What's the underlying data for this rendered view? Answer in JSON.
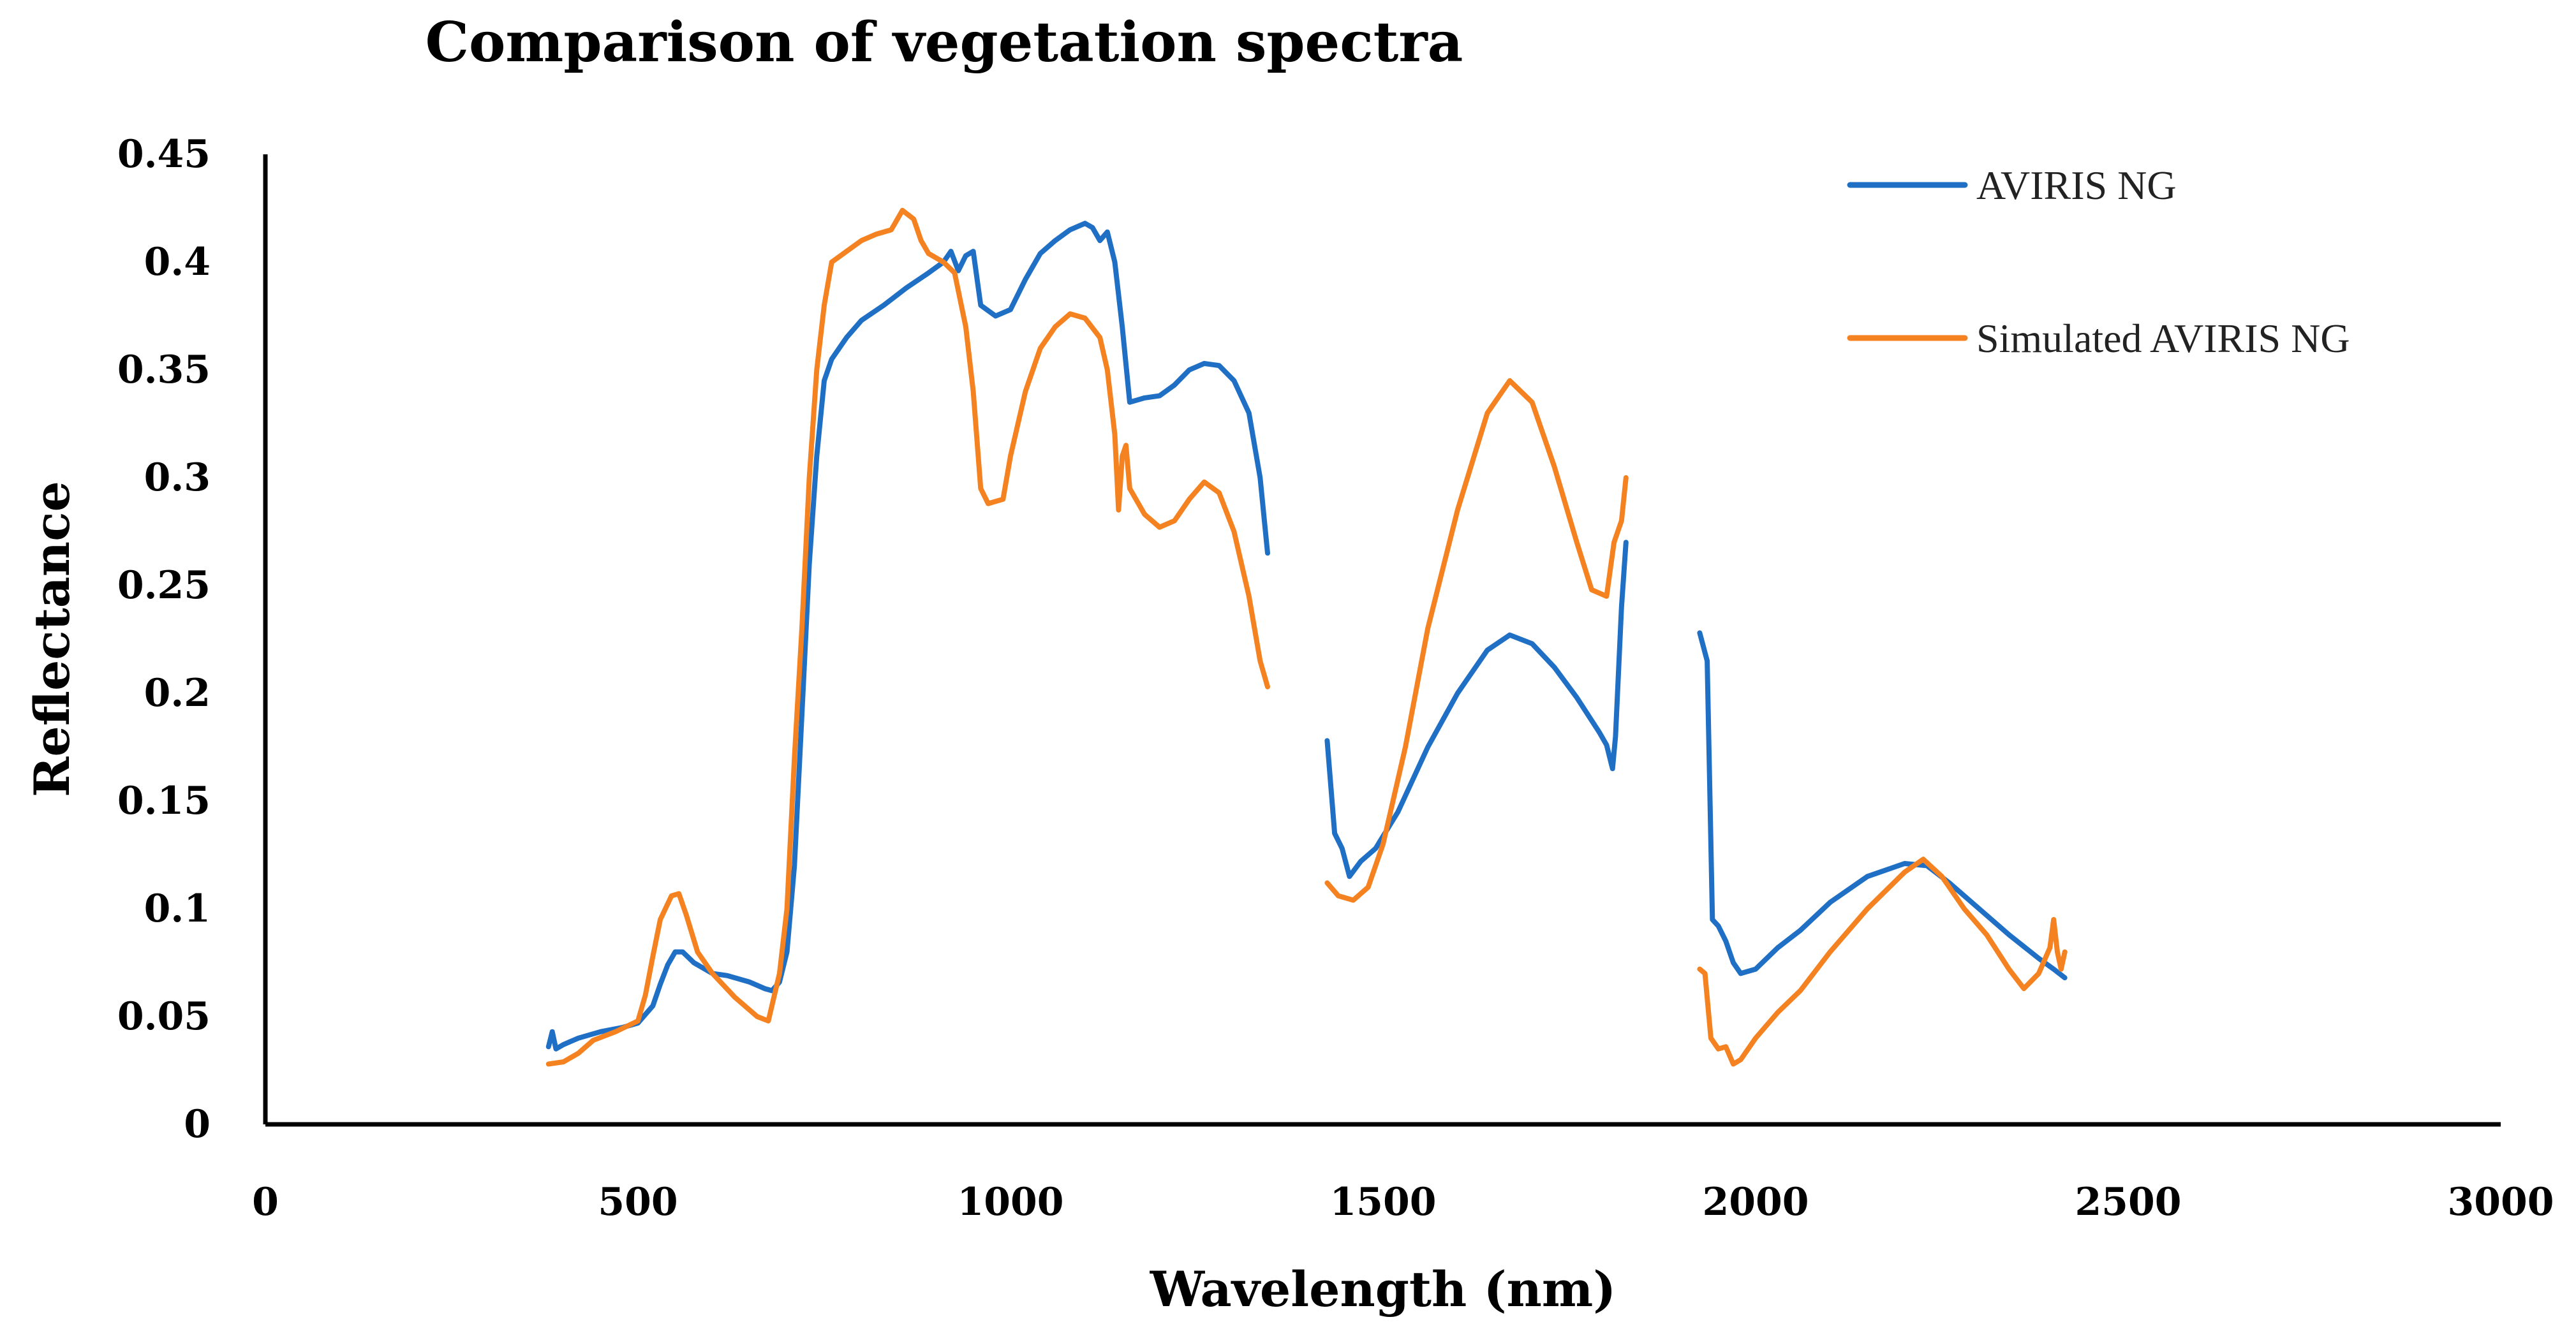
{
  "chart_data": {
    "type": "line",
    "title": "Comparison of vegetation spectra",
    "xlabel": "Wavelength (nm)",
    "ylabel": "Reflectance",
    "xlim": [
      0,
      3000
    ],
    "ylim": [
      0,
      0.45
    ],
    "xticks": [
      0,
      500,
      1000,
      1500,
      2000,
      2500,
      3000
    ],
    "yticks": [
      0,
      0.05,
      0.1,
      0.15,
      0.2,
      0.25,
      0.3,
      0.35,
      0.4,
      0.45
    ],
    "ytick_labels": [
      "0",
      "0.05",
      "0.1",
      "0.15",
      "0.2",
      "0.25",
      "0.3",
      "0.35",
      "0.4",
      "0.45"
    ],
    "xtick_labels": [
      "0",
      "500",
      "1000",
      "1500",
      "2000",
      "2500",
      "3000"
    ],
    "grid": false,
    "legend_position": "top-right",
    "series": [
      {
        "name": "AVIRIS NG",
        "color": "#1f6fc5",
        "segments": [
          [
            [
              380,
              0.036
            ],
            [
              385,
              0.043
            ],
            [
              390,
              0.035
            ],
            [
              400,
              0.037
            ],
            [
              420,
              0.04
            ],
            [
              450,
              0.043
            ],
            [
              480,
              0.045
            ],
            [
              500,
              0.047
            ],
            [
              520,
              0.055
            ],
            [
              530,
              0.065
            ],
            [
              540,
              0.074
            ],
            [
              550,
              0.08
            ],
            [
              560,
              0.08
            ],
            [
              575,
              0.075
            ],
            [
              600,
              0.07
            ],
            [
              620,
              0.069
            ],
            [
              650,
              0.066
            ],
            [
              670,
              0.063
            ],
            [
              680,
              0.062
            ],
            [
              690,
              0.066
            ],
            [
              700,
              0.08
            ],
            [
              710,
              0.12
            ],
            [
              720,
              0.19
            ],
            [
              730,
              0.26
            ],
            [
              740,
              0.31
            ],
            [
              750,
              0.345
            ],
            [
              760,
              0.355
            ],
            [
              780,
              0.365
            ],
            [
              800,
              0.373
            ],
            [
              830,
              0.38
            ],
            [
              860,
              0.388
            ],
            [
              890,
              0.395
            ],
            [
              910,
              0.4
            ],
            [
              920,
              0.405
            ],
            [
              930,
              0.396
            ],
            [
              940,
              0.403
            ],
            [
              950,
              0.405
            ],
            [
              960,
              0.38
            ],
            [
              980,
              0.375
            ],
            [
              1000,
              0.378
            ],
            [
              1020,
              0.392
            ],
            [
              1040,
              0.404
            ],
            [
              1060,
              0.41
            ],
            [
              1080,
              0.415
            ],
            [
              1100,
              0.418
            ],
            [
              1110,
              0.416
            ],
            [
              1120,
              0.41
            ],
            [
              1130,
              0.414
            ],
            [
              1140,
              0.4
            ],
            [
              1150,
              0.37
            ],
            [
              1160,
              0.335
            ],
            [
              1180,
              0.337
            ],
            [
              1200,
              0.338
            ],
            [
              1220,
              0.343
            ],
            [
              1240,
              0.35
            ],
            [
              1260,
              0.353
            ],
            [
              1280,
              0.352
            ],
            [
              1300,
              0.345
            ],
            [
              1320,
              0.33
            ],
            [
              1335,
              0.3
            ],
            [
              1345,
              0.265
            ]
          ],
          [
            [
              1425,
              0.178
            ],
            [
              1435,
              0.135
            ],
            [
              1445,
              0.128
            ],
            [
              1455,
              0.115
            ],
            [
              1470,
              0.122
            ],
            [
              1490,
              0.128
            ],
            [
              1520,
              0.145
            ],
            [
              1560,
              0.175
            ],
            [
              1600,
              0.2
            ],
            [
              1640,
              0.22
            ],
            [
              1670,
              0.227
            ],
            [
              1700,
              0.223
            ],
            [
              1730,
              0.212
            ],
            [
              1760,
              0.198
            ],
            [
              1790,
              0.182
            ],
            [
              1800,
              0.176
            ],
            [
              1808,
              0.165
            ],
            [
              1812,
              0.18
            ],
            [
              1820,
              0.24
            ],
            [
              1826,
              0.27
            ]
          ],
          [
            [
              1925,
              0.228
            ],
            [
              1935,
              0.215
            ],
            [
              1942,
              0.095
            ],
            [
              1950,
              0.092
            ],
            [
              1960,
              0.085
            ],
            [
              1970,
              0.075
            ],
            [
              1980,
              0.07
            ],
            [
              2000,
              0.072
            ],
            [
              2030,
              0.082
            ],
            [
              2060,
              0.09
            ],
            [
              2100,
              0.103
            ],
            [
              2150,
              0.115
            ],
            [
              2200,
              0.121
            ],
            [
              2230,
              0.12
            ],
            [
              2260,
              0.112
            ],
            [
              2300,
              0.1
            ],
            [
              2340,
              0.088
            ],
            [
              2380,
              0.077
            ],
            [
              2400,
              0.072
            ],
            [
              2415,
              0.068
            ]
          ]
        ]
      },
      {
        "name": "Simulated AVIRIS NG",
        "color": "#f58220",
        "segments": [
          [
            [
              380,
              0.028
            ],
            [
              400,
              0.029
            ],
            [
              420,
              0.033
            ],
            [
              440,
              0.039
            ],
            [
              470,
              0.043
            ],
            [
              500,
              0.048
            ],
            [
              510,
              0.06
            ],
            [
              520,
              0.078
            ],
            [
              530,
              0.095
            ],
            [
              545,
              0.106
            ],
            [
              555,
              0.107
            ],
            [
              565,
              0.097
            ],
            [
              580,
              0.08
            ],
            [
              600,
              0.07
            ],
            [
              630,
              0.059
            ],
            [
              660,
              0.05
            ],
            [
              675,
              0.048
            ],
            [
              690,
              0.07
            ],
            [
              700,
              0.1
            ],
            [
              710,
              0.17
            ],
            [
              720,
              0.23
            ],
            [
              730,
              0.3
            ],
            [
              740,
              0.35
            ],
            [
              750,
              0.38
            ],
            [
              760,
              0.4
            ],
            [
              780,
              0.405
            ],
            [
              800,
              0.41
            ],
            [
              820,
              0.413
            ],
            [
              840,
              0.415
            ],
            [
              855,
              0.424
            ],
            [
              870,
              0.42
            ],
            [
              880,
              0.41
            ],
            [
              890,
              0.404
            ],
            [
              910,
              0.4
            ],
            [
              925,
              0.395
            ],
            [
              940,
              0.37
            ],
            [
              950,
              0.34
            ],
            [
              960,
              0.295
            ],
            [
              970,
              0.288
            ],
            [
              990,
              0.29
            ],
            [
              1000,
              0.31
            ],
            [
              1020,
              0.34
            ],
            [
              1040,
              0.36
            ],
            [
              1060,
              0.37
            ],
            [
              1080,
              0.376
            ],
            [
              1100,
              0.374
            ],
            [
              1120,
              0.365
            ],
            [
              1130,
              0.35
            ],
            [
              1140,
              0.32
            ],
            [
              1145,
              0.285
            ],
            [
              1150,
              0.31
            ],
            [
              1155,
              0.315
            ],
            [
              1160,
              0.295
            ],
            [
              1180,
              0.283
            ],
            [
              1200,
              0.277
            ],
            [
              1220,
              0.28
            ],
            [
              1240,
              0.29
            ],
            [
              1260,
              0.298
            ],
            [
              1280,
              0.293
            ],
            [
              1300,
              0.275
            ],
            [
              1320,
              0.245
            ],
            [
              1335,
              0.215
            ],
            [
              1345,
              0.203
            ]
          ],
          [
            [
              1425,
              0.112
            ],
            [
              1440,
              0.106
            ],
            [
              1460,
              0.104
            ],
            [
              1480,
              0.11
            ],
            [
              1500,
              0.13
            ],
            [
              1530,
              0.175
            ],
            [
              1560,
              0.23
            ],
            [
              1600,
              0.285
            ],
            [
              1640,
              0.33
            ],
            [
              1670,
              0.345
            ],
            [
              1700,
              0.335
            ],
            [
              1730,
              0.305
            ],
            [
              1760,
              0.27
            ],
            [
              1780,
              0.248
            ],
            [
              1800,
              0.245
            ],
            [
              1810,
              0.27
            ],
            [
              1820,
              0.28
            ],
            [
              1826,
              0.3
            ]
          ],
          [
            [
              1925,
              0.072
            ],
            [
              1932,
              0.07
            ],
            [
              1940,
              0.04
            ],
            [
              1950,
              0.035
            ],
            [
              1960,
              0.036
            ],
            [
              1970,
              0.028
            ],
            [
              1980,
              0.03
            ],
            [
              2000,
              0.04
            ],
            [
              2030,
              0.052
            ],
            [
              2060,
              0.062
            ],
            [
              2100,
              0.08
            ],
            [
              2150,
              0.1
            ],
            [
              2200,
              0.117
            ],
            [
              2225,
              0.123
            ],
            [
              2250,
              0.115
            ],
            [
              2280,
              0.1
            ],
            [
              2310,
              0.088
            ],
            [
              2340,
              0.072
            ],
            [
              2360,
              0.063
            ],
            [
              2380,
              0.07
            ],
            [
              2395,
              0.082
            ],
            [
              2400,
              0.095
            ],
            [
              2405,
              0.08
            ],
            [
              2410,
              0.072
            ],
            [
              2415,
              0.08
            ]
          ]
        ]
      }
    ]
  }
}
